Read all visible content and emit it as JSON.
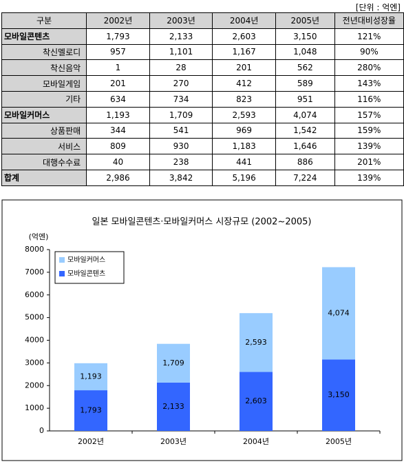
{
  "unit_note": "[단위 : 억엔]",
  "table": {
    "header": [
      "구분",
      "2002년",
      "2003년",
      "2004년",
      "2005년",
      "전년대비성장율"
    ],
    "rows": [
      [
        "모바일콘텐츠",
        "1,793",
        "2,133",
        "2,603",
        "3,150",
        "121%"
      ],
      [
        "착신멜로디",
        "957",
        "1,101",
        "1,167",
        "1,048",
        "90%"
      ],
      [
        "착신음악",
        "1",
        "28",
        "201",
        "562",
        "280%"
      ],
      [
        "모바일게임",
        "201",
        "270",
        "412",
        "589",
        "143%"
      ],
      [
        "기타",
        "634",
        "734",
        "823",
        "951",
        "116%"
      ],
      [
        "모바일커머스",
        "1,193",
        "1,709",
        "2,593",
        "4,074",
        "157%"
      ],
      [
        "상품판매",
        "344",
        "541",
        "969",
        "1,542",
        "159%"
      ],
      [
        "서비스",
        "809",
        "930",
        "1,183",
        "1,646",
        "139%"
      ],
      [
        "대행수수료",
        "40",
        "238",
        "441",
        "886",
        "201%"
      ],
      [
        "합계",
        "2,986",
        "3,842",
        "5,196",
        "7,224",
        "139%"
      ]
    ]
  },
  "chart_data": {
    "type": "stacked-bar",
    "title": "일본 모바일콘텐츠·모바일커머스 시장규모 (2002~2005)",
    "y_label": "(억엔)",
    "categories": [
      "2002년",
      "2003년",
      "2004년",
      "2005년"
    ],
    "series": [
      {
        "name": "모바일콘텐츠",
        "color": "#3366ff",
        "values": [
          1793,
          2133,
          2603,
          3150
        ],
        "value_labels": [
          "1,793",
          "2,133",
          "2,603",
          "3,150"
        ]
      },
      {
        "name": "모바일커머스",
        "color": "#99ccff",
        "values": [
          1193,
          1709,
          2593,
          4074
        ],
        "value_labels": [
          "1,193",
          "1,709",
          "2,593",
          "4,074"
        ]
      }
    ],
    "ylim": [
      0,
      8000
    ],
    "yticks": [
      0,
      1000,
      2000,
      3000,
      4000,
      5000,
      6000,
      7000,
      8000
    ]
  }
}
